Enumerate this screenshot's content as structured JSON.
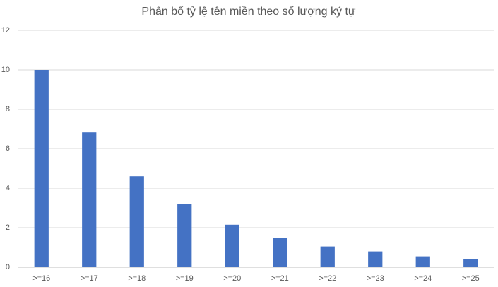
{
  "chart_data": {
    "type": "bar",
    "title": "Phân bố tỷ lệ tên miền theo số lượng ký tự",
    "categories": [
      ">=16",
      ">=17",
      ">=18",
      ">=19",
      ">=20",
      ">=21",
      ">=22",
      ">=23",
      ">=24",
      ">=25"
    ],
    "values": [
      10,
      6.85,
      4.6,
      3.2,
      2.15,
      1.5,
      1.05,
      0.8,
      0.55,
      0.4
    ],
    "color": "#4472c4",
    "ylim": [
      0,
      12
    ],
    "yticks": [
      0,
      2,
      4,
      6,
      8,
      10,
      12
    ],
    "grid": true
  }
}
